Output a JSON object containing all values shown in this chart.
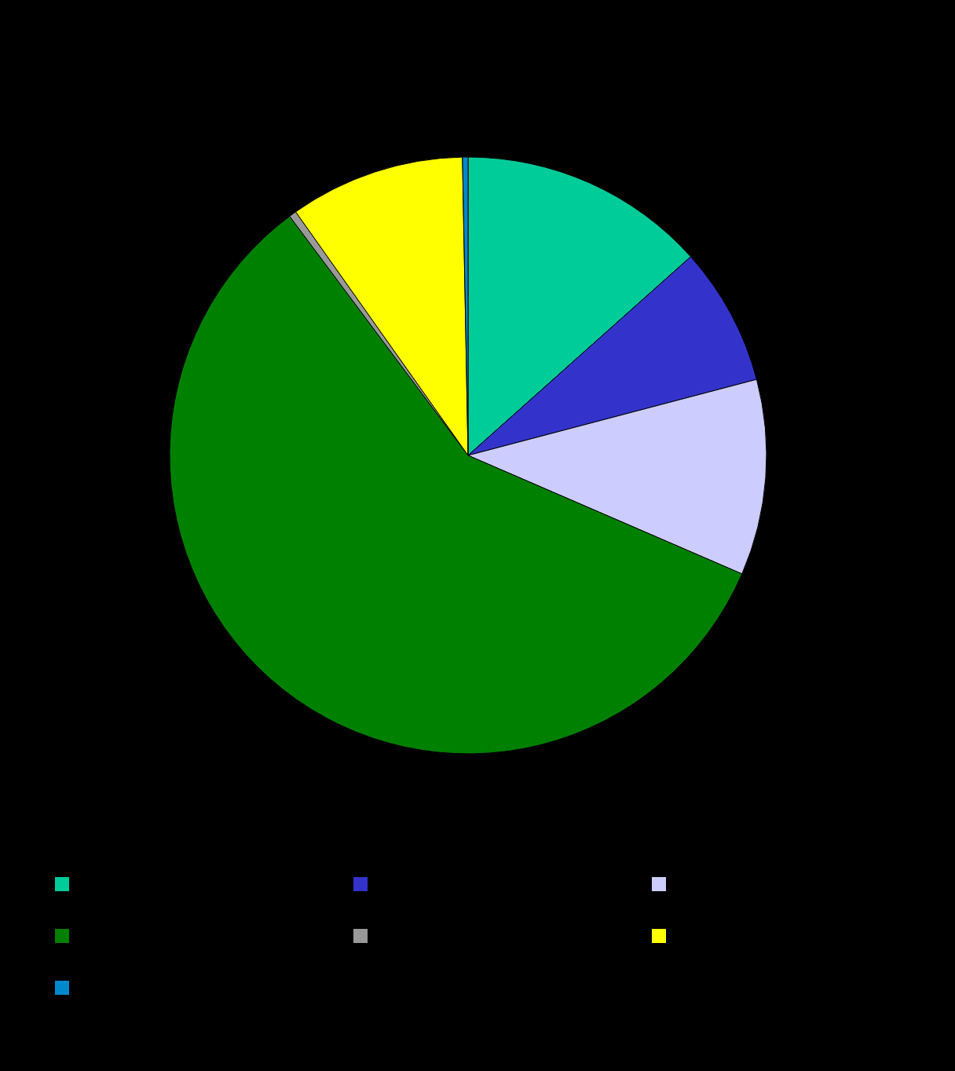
{
  "chart_data": {
    "type": "pie",
    "categories": [
      null,
      null,
      null,
      null,
      null,
      null,
      null
    ],
    "values": [
      13.4,
      7.5,
      10.6,
      58.3,
      0.4,
      9.5,
      0.3
    ],
    "colors": [
      "#00cc99",
      "#3333cc",
      "#ccccff",
      "#008000",
      "#999999",
      "#ffff00",
      "#0088cc"
    ]
  }
}
